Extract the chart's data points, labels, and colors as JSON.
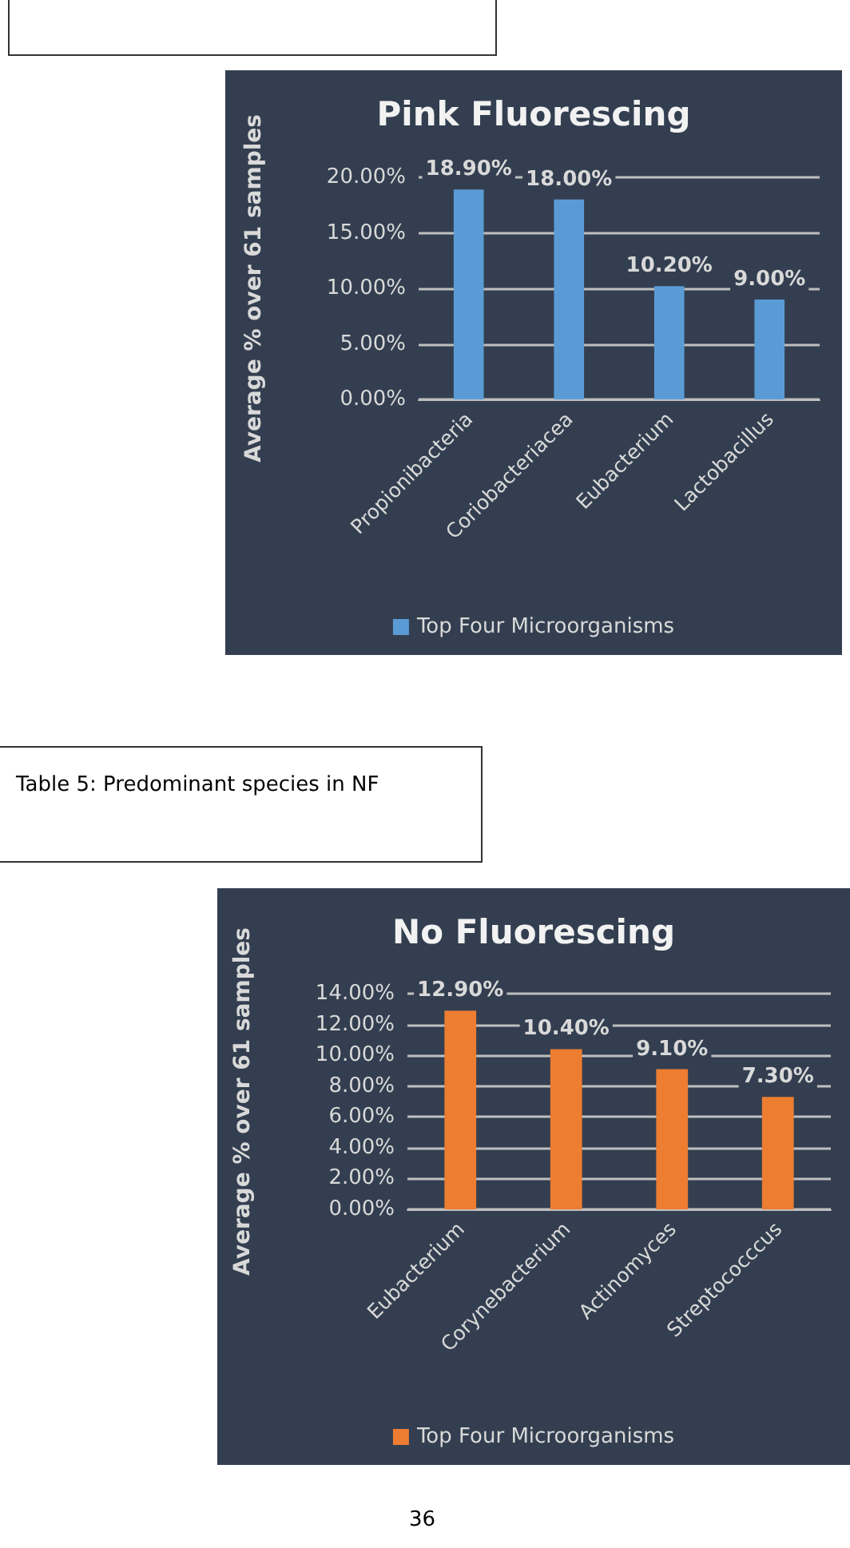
{
  "chart_data": [
    {
      "type": "bar",
      "title": "Pink Fluorescing",
      "ylabel": "Average % over 61 samples",
      "categories": [
        "Propionibacteria",
        "Coriobacteriacea",
        "Eubacterium",
        "Lactobacillus"
      ],
      "series": [
        {
          "name": "Top Four Microorganisms",
          "color": "#5b9bd5",
          "values": [
            18.9,
            18.0,
            10.2,
            9.0
          ],
          "value_labels": [
            "18.90%",
            "18.00%",
            "10.20%",
            "9.00%"
          ]
        }
      ],
      "ylim": [
        0,
        20
      ],
      "yticks": [
        {
          "value": 0,
          "label": "0.00%"
        },
        {
          "value": 5,
          "label": "5.00%"
        },
        {
          "value": 10,
          "label": "10.00%"
        },
        {
          "value": 15,
          "label": "15.00%"
        },
        {
          "value": 20,
          "label": "20.00%"
        }
      ],
      "grid": "y",
      "legend": "bottom"
    },
    {
      "type": "bar",
      "title": "No Fluorescing",
      "ylabel": "Average % over 61 samples",
      "categories": [
        "Eubacterium",
        "Corynebacterium",
        "Actinomyces",
        "Streptococccus"
      ],
      "series": [
        {
          "name": "Top Four Microorganisms",
          "color": "#ed7d31",
          "values": [
            12.9,
            10.4,
            9.1,
            7.3
          ],
          "value_labels": [
            "12.90%",
            "10.40%",
            "9.10%",
            "7.30%"
          ]
        }
      ],
      "ylim": [
        0,
        14
      ],
      "yticks": [
        {
          "value": 0,
          "label": "0.00%"
        },
        {
          "value": 2,
          "label": "2.00%"
        },
        {
          "value": 4,
          "label": "4.00%"
        },
        {
          "value": 6,
          "label": "6.00%"
        },
        {
          "value": 8,
          "label": "8.00%"
        },
        {
          "value": 10,
          "label": "10.00%"
        },
        {
          "value": 12,
          "label": "12.00%"
        },
        {
          "value": 14,
          "label": "14.00%"
        }
      ],
      "grid": "y",
      "legend": "bottom",
      "annotations": [
        "Table 5: Predominant species in NF",
        "36"
      ]
    }
  ]
}
